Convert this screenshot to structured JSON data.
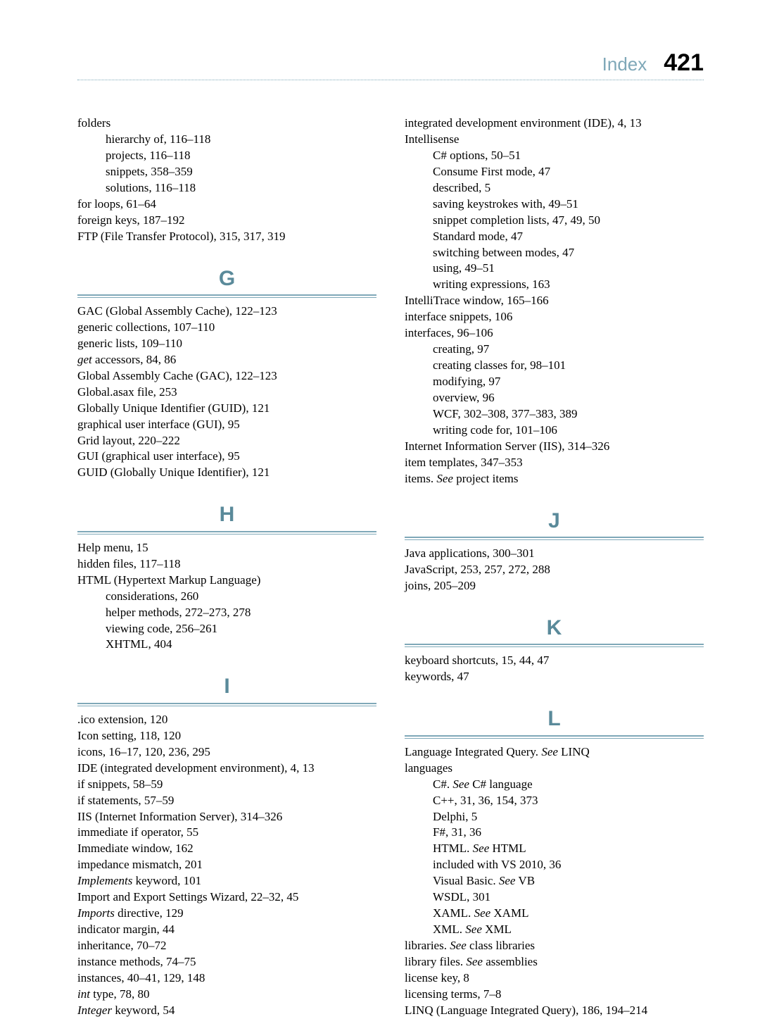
{
  "header": {
    "label": "Index",
    "page_number": "421"
  },
  "left_column": {
    "pre_entries": [
      {
        "text": "folders",
        "indent": 0
      },
      {
        "text": "hierarchy of, 116–118",
        "indent": 1
      },
      {
        "text": "projects, 116–118",
        "indent": 1
      },
      {
        "text": "snippets, 358–359",
        "indent": 1
      },
      {
        "text": "solutions, 116–118",
        "indent": 1
      },
      {
        "text": "for loops, 61–64",
        "indent": 0
      },
      {
        "text": "foreign keys, 187–192",
        "indent": 0
      },
      {
        "text": "FTP (File Transfer Protocol), 315, 317, 319",
        "indent": 0
      }
    ],
    "g_entries": [
      {
        "text": "GAC (Global Assembly Cache), 122–123",
        "indent": 0
      },
      {
        "text": "generic collections, 107–110",
        "indent": 0
      },
      {
        "text": "generic lists, 109–110",
        "indent": 0
      },
      {
        "html": "<span class=\"italic\">get</span> accessors, 84, 86",
        "indent": 0
      },
      {
        "text": "Global Assembly Cache (GAC), 122–123",
        "indent": 0
      },
      {
        "text": "Global.asax file, 253",
        "indent": 0
      },
      {
        "text": "Globally Unique Identifier (GUID), 121",
        "indent": 0
      },
      {
        "text": "graphical user interface (GUI), 95",
        "indent": 0
      },
      {
        "text": "Grid layout, 220–222",
        "indent": 0
      },
      {
        "text": "GUI (graphical user interface), 95",
        "indent": 0
      },
      {
        "text": "GUID (Globally Unique Identifier), 121",
        "indent": 0
      }
    ],
    "h_entries": [
      {
        "text": "Help menu, 15",
        "indent": 0
      },
      {
        "text": "hidden files, 117–118",
        "indent": 0
      },
      {
        "text": "HTML (Hypertext Markup Language)",
        "indent": 0
      },
      {
        "text": "considerations, 260",
        "indent": 1
      },
      {
        "text": "helper methods, 272–273, 278",
        "indent": 1
      },
      {
        "text": "viewing code, 256–261",
        "indent": 1
      },
      {
        "text": "XHTML, 404",
        "indent": 1
      }
    ],
    "i_entries": [
      {
        "text": ".ico extension, 120",
        "indent": 0
      },
      {
        "text": "Icon setting, 118, 120",
        "indent": 0
      },
      {
        "text": "icons, 16–17, 120, 236, 295",
        "indent": 0
      },
      {
        "text": "IDE (integrated development environment), 4, 13",
        "indent": 0
      },
      {
        "text": "if snippets, 58–59",
        "indent": 0
      },
      {
        "text": "if statements, 57–59",
        "indent": 0
      },
      {
        "text": "IIS (Internet Information Server), 314–326",
        "indent": 0
      },
      {
        "text": "immediate if operator, 55",
        "indent": 0
      },
      {
        "text": "Immediate window, 162",
        "indent": 0
      },
      {
        "text": "impedance mismatch, 201",
        "indent": 0
      },
      {
        "html": "<span class=\"italic\">Implements</span> keyword, 101",
        "indent": 0
      },
      {
        "text": "Import and Export Settings Wizard, 22–32, 45",
        "indent": 0
      },
      {
        "html": "<span class=\"italic\">Imports</span> directive, 129",
        "indent": 0
      },
      {
        "text": "indicator margin, 44",
        "indent": 0
      },
      {
        "text": "inheritance, 70–72",
        "indent": 0
      },
      {
        "text": "instance methods, 74–75",
        "indent": 0
      },
      {
        "text": "instances, 40–41, 129, 148",
        "indent": 0
      },
      {
        "html": "<span class=\"italic\">int</span> type, 78, 80",
        "indent": 0
      },
      {
        "html": "<span class=\"italic\">Integer</span> keyword, 54",
        "indent": 0
      }
    ]
  },
  "right_column": {
    "pre_entries": [
      {
        "text": "integrated development environment (IDE), 4, 13",
        "indent": 0
      },
      {
        "text": "Intellisense",
        "indent": 0
      },
      {
        "text": "C# options, 50–51",
        "indent": 1
      },
      {
        "text": "Consume First mode, 47",
        "indent": 1
      },
      {
        "text": "described, 5",
        "indent": 1
      },
      {
        "text": "saving keystrokes with, 49–51",
        "indent": 1
      },
      {
        "text": "snippet completion lists, 47, 49, 50",
        "indent": 1
      },
      {
        "text": "Standard mode, 47",
        "indent": 1
      },
      {
        "text": "switching between modes, 47",
        "indent": 1
      },
      {
        "text": "using, 49–51",
        "indent": 1
      },
      {
        "text": "writing expressions, 163",
        "indent": 1
      },
      {
        "text": "IntelliTrace window, 165–166",
        "indent": 0
      },
      {
        "text": "interface snippets, 106",
        "indent": 0
      },
      {
        "text": "interfaces, 96–106",
        "indent": 0
      },
      {
        "text": "creating, 97",
        "indent": 1
      },
      {
        "text": "creating classes for, 98–101",
        "indent": 1
      },
      {
        "text": "modifying, 97",
        "indent": 1
      },
      {
        "text": "overview, 96",
        "indent": 1
      },
      {
        "text": "WCF, 302–308, 377–383, 389",
        "indent": 1
      },
      {
        "text": "writing code for, 101–106",
        "indent": 1
      },
      {
        "text": "Internet Information Server (IIS), 314–326",
        "indent": 0
      },
      {
        "text": "item templates, 347–353",
        "indent": 0
      },
      {
        "html": "items. <span class=\"italic\">See</span> project items",
        "indent": 0
      }
    ],
    "j_entries": [
      {
        "text": "Java applications, 300–301",
        "indent": 0
      },
      {
        "text": "JavaScript, 253, 257, 272, 288",
        "indent": 0
      },
      {
        "text": "joins, 205–209",
        "indent": 0
      }
    ],
    "k_entries": [
      {
        "text": "keyboard shortcuts, 15, 44, 47",
        "indent": 0
      },
      {
        "text": "keywords, 47",
        "indent": 0
      }
    ],
    "l_entries": [
      {
        "html": "Language Integrated Query. <span class=\"italic\">See</span> LINQ",
        "indent": 0
      },
      {
        "text": "languages",
        "indent": 0
      },
      {
        "html": "C#. <span class=\"italic\">See</span> C# language",
        "indent": 1
      },
      {
        "text": "C++, 31, 36, 154, 373",
        "indent": 1
      },
      {
        "text": "Delphi, 5",
        "indent": 1
      },
      {
        "text": "F#, 31, 36",
        "indent": 1
      },
      {
        "html": "HTML. <span class=\"italic\">See</span> HTML",
        "indent": 1
      },
      {
        "text": "included with VS 2010, 36",
        "indent": 1
      },
      {
        "html": "Visual Basic. <span class=\"italic\">See</span> VB",
        "indent": 1
      },
      {
        "text": "WSDL, 301",
        "indent": 1
      },
      {
        "html": "XAML. <span class=\"italic\">See</span> XAML",
        "indent": 1
      },
      {
        "html": "XML. <span class=\"italic\">See</span> XML",
        "indent": 1
      },
      {
        "html": "libraries. <span class=\"italic\">See</span> class libraries",
        "indent": 0
      },
      {
        "html": "library files. <span class=\"italic\">See</span> assemblies",
        "indent": 0
      },
      {
        "text": "license key, 8",
        "indent": 0
      },
      {
        "text": "licensing terms, 7–8",
        "indent": 0
      },
      {
        "text": "LINQ (Language Integrated Query), 186, 194–214",
        "indent": 0
      }
    ]
  },
  "letters": {
    "g": "G",
    "h": "H",
    "i": "I",
    "j": "J",
    "k": "K",
    "l": "L"
  }
}
